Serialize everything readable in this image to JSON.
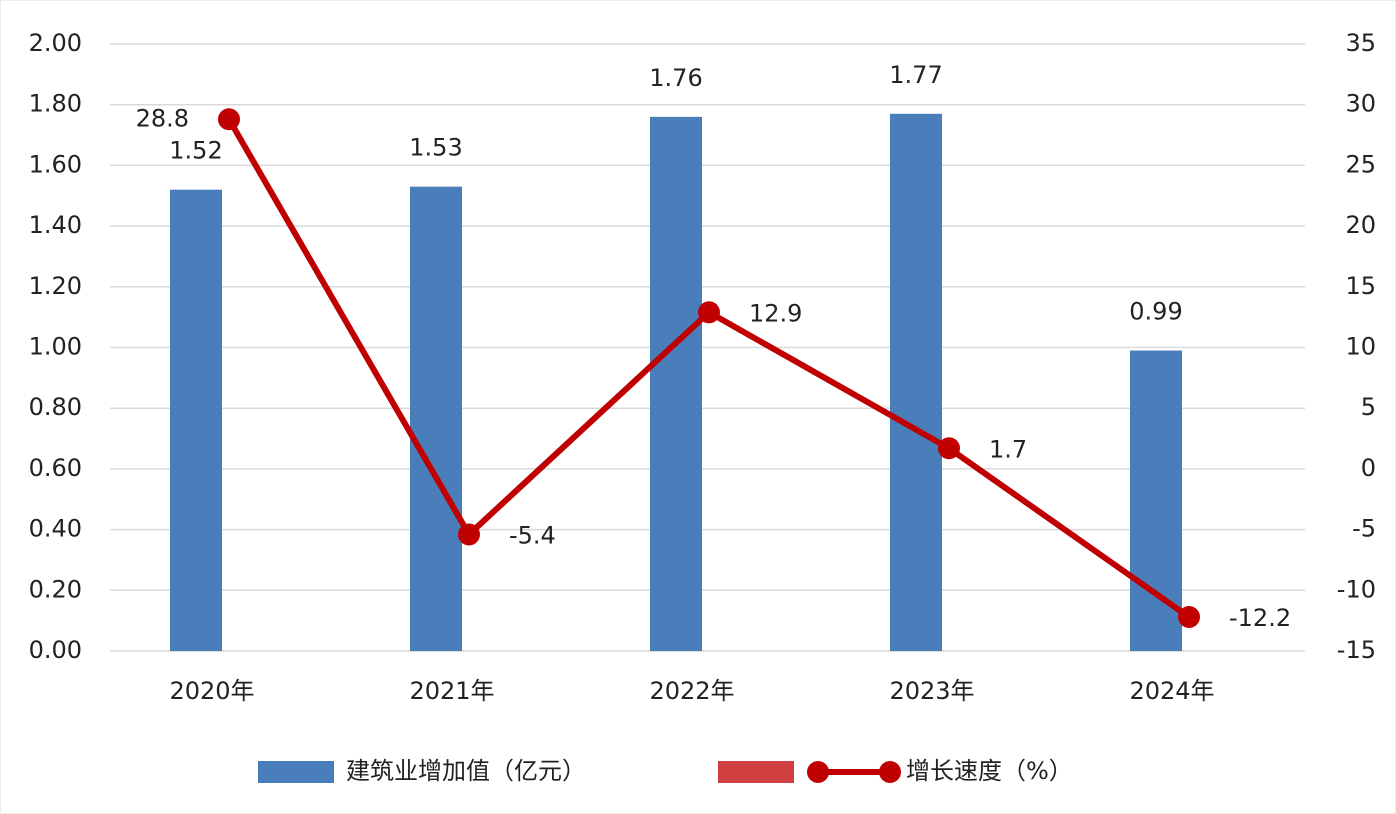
{
  "chart_data": {
    "type": "bar-line",
    "categories": [
      "2020年",
      "2021年",
      "2022年",
      "2023年",
      "2024年"
    ],
    "series": [
      {
        "name": "建筑业增加值（亿元）",
        "type": "bar",
        "color": "#4a7ebb",
        "values": [
          1.52,
          1.53,
          1.76,
          1.77,
          0.99
        ]
      },
      {
        "name": "增长速度（%）",
        "type": "line",
        "axis": "y2",
        "color": "#c00000",
        "values": [
          28.8,
          -5.4,
          12.9,
          1.7,
          -12.2
        ]
      }
    ],
    "ylim": [
      0,
      2
    ],
    "yticks": [
      {
        "value": 0,
        "label": "0.00"
      },
      {
        "value": 0.2,
        "label": "0.20"
      },
      {
        "value": 0.4,
        "label": "0.40"
      },
      {
        "value": 0.6,
        "label": "0.60"
      },
      {
        "value": 0.8,
        "label": "0.80"
      },
      {
        "value": 1,
        "label": "1.00"
      },
      {
        "value": 1.2,
        "label": "1.20"
      },
      {
        "value": 1.4,
        "label": "1.40"
      },
      {
        "value": 1.6,
        "label": "1.60"
      },
      {
        "value": 1.8,
        "label": "1.80"
      },
      {
        "value": 2,
        "label": "2.00"
      }
    ],
    "y2lim": [
      -15,
      35
    ],
    "y2ticks": [
      -15,
      -10,
      -5,
      0,
      5,
      10,
      15,
      20,
      25,
      30,
      35
    ],
    "grid": true,
    "legend": "bottom"
  }
}
